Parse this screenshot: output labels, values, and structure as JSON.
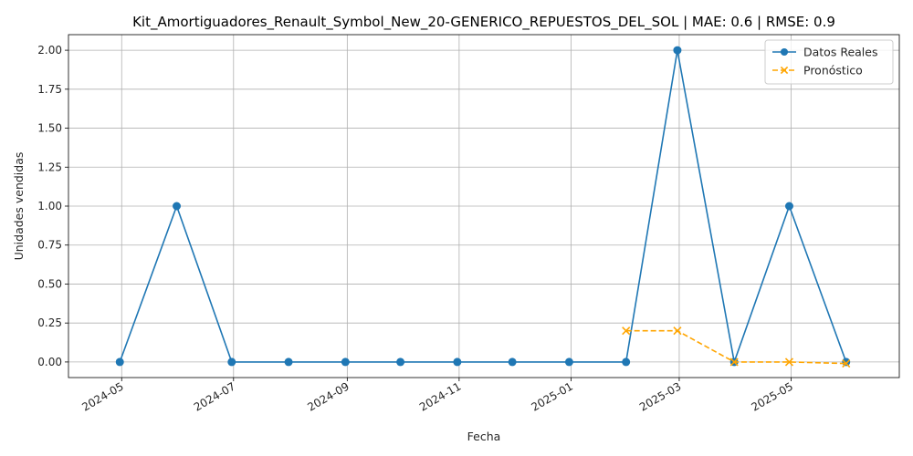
{
  "chart_data": {
    "type": "line",
    "title": "Kit_Amortiguadores_Renault_Symbol_New_20-GENERICO_REPUESTOS_DEL_SOL | MAE: 0.6 | RMSE: 0.9",
    "xlabel": "Fecha",
    "ylabel": "Unidades vendidas",
    "ylim": [
      -0.1,
      2.1
    ],
    "xlim": [
      "2024-04-02",
      "2025-06-29"
    ],
    "grid": true,
    "legend_position": "top-right",
    "x_ticks": [
      "2024-05",
      "2024-07",
      "2024-09",
      "2024-11",
      "2025-01",
      "2025-03",
      "2025-05"
    ],
    "y_ticks": [
      "0.00",
      "0.25",
      "0.50",
      "0.75",
      "1.00",
      "1.25",
      "1.50",
      "1.75",
      "2.00"
    ],
    "series": [
      {
        "name": "Datos Reales",
        "color": "#1f77b4",
        "marker": "circle",
        "style": "solid",
        "x": [
          "2024-04-30",
          "2024-05-31",
          "2024-06-30",
          "2024-07-31",
          "2024-08-31",
          "2024-09-30",
          "2024-10-31",
          "2024-11-30",
          "2024-12-31",
          "2025-01-31",
          "2025-02-28",
          "2025-03-31",
          "2025-04-30",
          "2025-05-31"
        ],
        "values": [
          0,
          1,
          0,
          0,
          0,
          0,
          0,
          0,
          0,
          0,
          2,
          0,
          1,
          0
        ]
      },
      {
        "name": "Pronóstico",
        "color": "#ffa500",
        "marker": "x",
        "style": "dashed",
        "x": [
          "2025-01-31",
          "2025-02-28",
          "2025-03-31",
          "2025-04-30",
          "2025-05-31"
        ],
        "values": [
          0.2,
          0.2,
          0.0,
          0.0,
          -0.01
        ]
      }
    ]
  }
}
